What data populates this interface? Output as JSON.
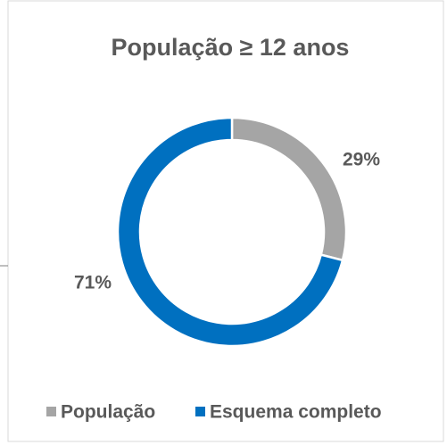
{
  "chart_data": {
    "type": "donut",
    "title": "População ≥ 12 anos",
    "categories": [
      "População",
      "Esquema completo"
    ],
    "values": [
      29,
      71
    ],
    "value_labels": [
      "29%",
      "71%"
    ],
    "colors": [
      "#a5a5a5",
      "#0070c0"
    ],
    "legend": "bottom"
  }
}
